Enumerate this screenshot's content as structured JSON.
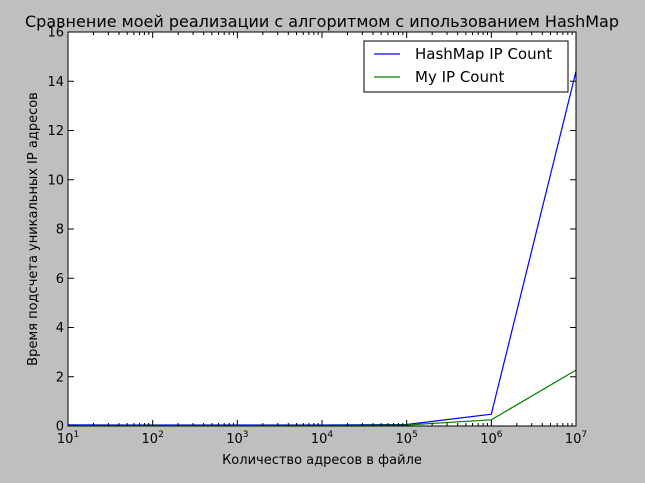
{
  "chart_data": {
    "type": "line",
    "title": "Сравнение моей реализации с алгоритмом с ипользованием HashMap",
    "xlabel": "Количество адресов в файле",
    "ylabel": "Время подсчета уникальных IP адресов",
    "x_scale": "log",
    "xlim": [
      10,
      10000000
    ],
    "ylim": [
      0,
      16
    ],
    "x_ticks": [
      {
        "base": "10",
        "exp": "1",
        "value": 10
      },
      {
        "base": "10",
        "exp": "2",
        "value": 100
      },
      {
        "base": "10",
        "exp": "3",
        "value": 1000
      },
      {
        "base": "10",
        "exp": "4",
        "value": 10000
      },
      {
        "base": "10",
        "exp": "5",
        "value": 100000
      },
      {
        "base": "10",
        "exp": "6",
        "value": 1000000
      },
      {
        "base": "10",
        "exp": "7",
        "value": 10000000
      }
    ],
    "y_ticks": [
      "0",
      "2",
      "4",
      "6",
      "8",
      "10",
      "12",
      "14",
      "16"
    ],
    "x": [
      10,
      100,
      1000,
      10000,
      100000,
      1000000,
      10000000
    ],
    "series": [
      {
        "name": "HashMap IP Count",
        "color": "#0000ff",
        "values": [
          0.05,
          0.04,
          0.04,
          0.04,
          0.06,
          0.48,
          14.4
        ]
      },
      {
        "name": "My IP Count",
        "color": "#008000",
        "values": [
          0.02,
          0.02,
          0.02,
          0.02,
          0.04,
          0.25,
          2.27
        ]
      }
    ],
    "legend_position": "top-right",
    "grid": false
  }
}
